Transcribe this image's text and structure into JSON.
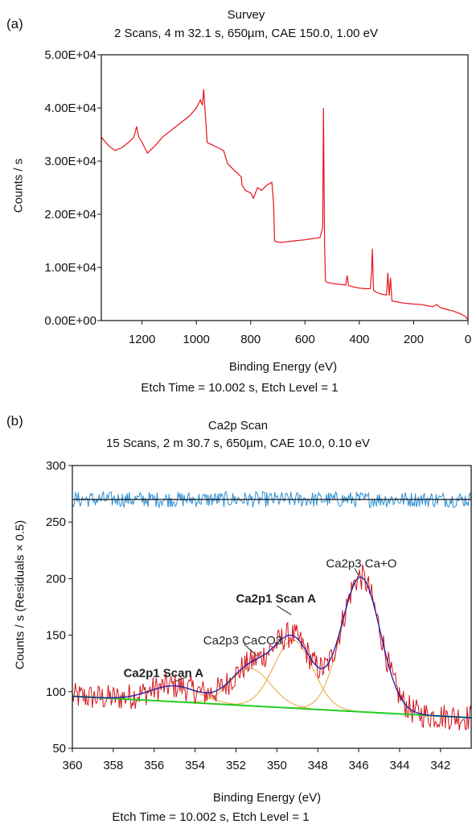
{
  "chart_data": [
    {
      "panel": "(a)",
      "type": "line",
      "title": "Survey",
      "subtitle": "2 Scans,  4 m 32.1 s,  650µm,  CAE 150.0,  1.00 eV",
      "xlabel": "Binding Energy (eV)",
      "ylabel": "Counts / s",
      "footer": "Etch Time = 10.002 s, Etch Level = 1",
      "xlim": [
        1350,
        0
      ],
      "ylim": [
        0,
        50000
      ],
      "x_ticks": [
        1200,
        1000,
        800,
        600,
        400,
        200,
        0
      ],
      "y_ticks": [
        0,
        10000,
        20000,
        30000,
        40000,
        50000
      ],
      "y_tick_labels": [
        "0.00E+00",
        "1.00E+04",
        "2.00E+04",
        "3.00E+04",
        "4.00E+04",
        "5.00E+04"
      ],
      "grid": false,
      "series": [
        {
          "color": "#e8131b",
          "x": [
            1350,
            1325,
            1300,
            1275,
            1250,
            1230,
            1220,
            1212,
            1200,
            1180,
            1170,
            1150,
            1125,
            1100,
            1075,
            1050,
            1025,
            1000,
            985,
            978,
            973,
            968,
            960,
            940,
            920,
            900,
            885,
            875,
            865,
            860,
            850,
            835,
            832,
            820,
            800,
            790,
            775,
            760,
            740,
            722,
            716,
            712,
            705,
            690,
            670,
            640,
            600,
            575,
            560,
            545,
            535,
            532,
            530,
            528,
            525,
            520,
            500,
            470,
            450,
            445,
            440,
            420,
            400,
            380,
            360,
            355,
            352,
            348,
            340,
            320,
            300,
            295,
            290,
            285,
            280,
            260,
            240,
            200,
            170,
            150,
            130,
            115,
            100,
            85,
            70,
            55,
            40,
            25,
            10,
            0
          ],
          "y": [
            34500,
            33000,
            32000,
            32500,
            33500,
            34500,
            36500,
            34500,
            33500,
            31500,
            32000,
            33000,
            34500,
            35500,
            36500,
            37500,
            38500,
            40000,
            41500,
            40500,
            43500,
            39500,
            33500,
            33000,
            32500,
            32000,
            29500,
            29000,
            28500,
            28200,
            27800,
            27000,
            25500,
            24500,
            24000,
            23000,
            25000,
            24500,
            25500,
            26000,
            22000,
            15000,
            14800,
            14700,
            14800,
            15000,
            15200,
            15400,
            15500,
            15600,
            17500,
            40000,
            26000,
            14000,
            7500,
            7200,
            7000,
            6800,
            6700,
            8500,
            6600,
            6300,
            6100,
            6000,
            6000,
            9000,
            13500,
            5700,
            5400,
            5000,
            4800,
            9000,
            4700,
            8000,
            3700,
            3500,
            3300,
            3100,
            3000,
            2800,
            2600,
            3000,
            2400,
            2200,
            2000,
            1800,
            1500,
            1200,
            800,
            200
          ]
        }
      ]
    },
    {
      "panel": "(b)",
      "type": "line",
      "title": "Ca2p Scan",
      "subtitle": "15 Scans,  2 m 30.7 s,  650µm,  CAE 10.0,  0.10 eV",
      "xlabel": "Binding Energy (eV)",
      "ylabel": "Counts / s  (Residuals × 0.5)",
      "footer": "Etch Time = 10.002 s, Etch Level = 1",
      "xlim": [
        360,
        340.5
      ],
      "ylim": [
        50,
        300
      ],
      "x_ticks": [
        360,
        358,
        356,
        354,
        352,
        350,
        348,
        346,
        344,
        342
      ],
      "y_ticks": [
        50,
        100,
        150,
        200,
        250,
        300
      ],
      "grid": false,
      "annotations": [
        {
          "text": "Ca2p1 Scan A",
          "x": 357.5,
          "y": 113,
          "bold": true
        },
        {
          "text": "Ca2p3 CaCO3",
          "x": 353.6,
          "y": 142,
          "bold": false
        },
        {
          "text": "Ca2p1 Scan A",
          "x": 352.0,
          "y": 179,
          "bold": true
        },
        {
          "text": "Ca2p3 Ca+O",
          "x": 347.6,
          "y": 210,
          "bold": false
        }
      ],
      "series": [
        {
          "role": "raw",
          "color": "#d4141c"
        },
        {
          "role": "envelope",
          "color": "#1a1aa8"
        },
        {
          "role": "background",
          "color": "#22cc22",
          "x": [
            360,
            340.5
          ],
          "y": [
            96,
            77
          ]
        },
        {
          "role": "component",
          "color": "#e8a33a",
          "center": 355.0,
          "sigma": 1.2,
          "height": 14
        },
        {
          "role": "component",
          "color": "#e8a33a",
          "center": 351.3,
          "sigma": 1.0,
          "height": 33
        },
        {
          "role": "component",
          "color": "#e8a33a",
          "center": 349.2,
          "sigma": 0.95,
          "height": 60
        },
        {
          "role": "component",
          "color": "#e8a33a",
          "center": 345.9,
          "sigma": 0.95,
          "height": 119
        },
        {
          "role": "residuals",
          "color": "#2a8fd4",
          "baseline": 270
        },
        {
          "role": "zero-line",
          "color": "#111111",
          "x": [
            360,
            340.5
          ],
          "y": [
            270,
            270
          ]
        }
      ]
    }
  ]
}
